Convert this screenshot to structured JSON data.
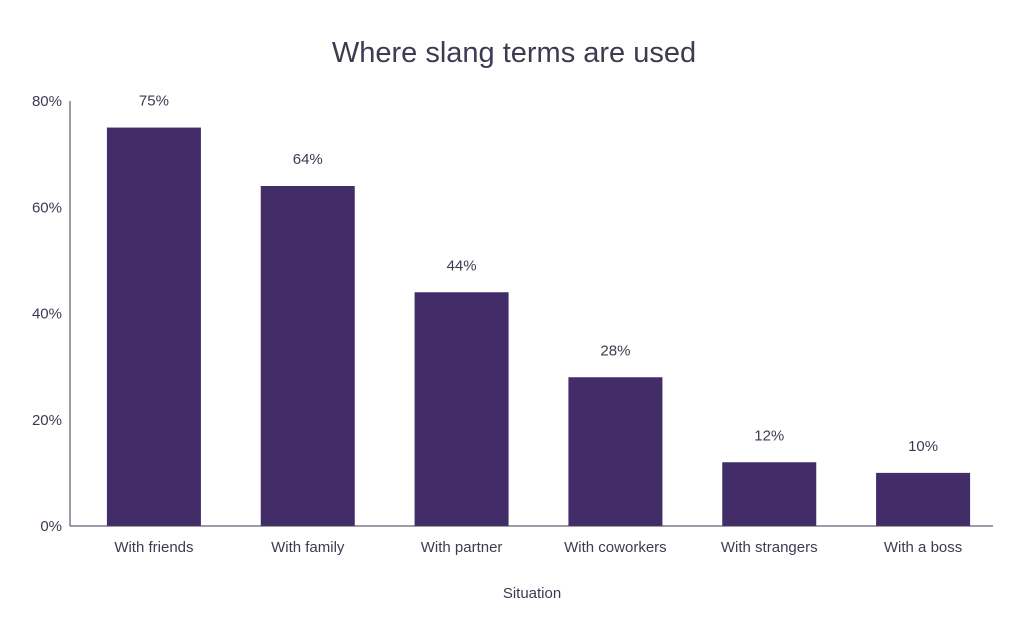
{
  "chart_data": {
    "type": "bar",
    "title": "Where slang terms are used",
    "xlabel": "Situation",
    "ylabel": "",
    "categories": [
      "With friends",
      "With family",
      "With partner",
      "With coworkers",
      "With strangers",
      "With a boss"
    ],
    "values": [
      75,
      64,
      44,
      28,
      12,
      10
    ],
    "value_labels": [
      "75%",
      "64%",
      "44%",
      "28%",
      "12%",
      "10%"
    ],
    "ylim": [
      0,
      80
    ],
    "yticks": [
      0,
      20,
      40,
      60,
      80
    ],
    "ytick_labels": [
      "0%",
      "20%",
      "40%",
      "60%",
      "80%"
    ],
    "grid": false,
    "legend": "none",
    "bar_color": "#432d68",
    "axis_color": "#3d3a52",
    "text_color": "#3d3a52"
  }
}
